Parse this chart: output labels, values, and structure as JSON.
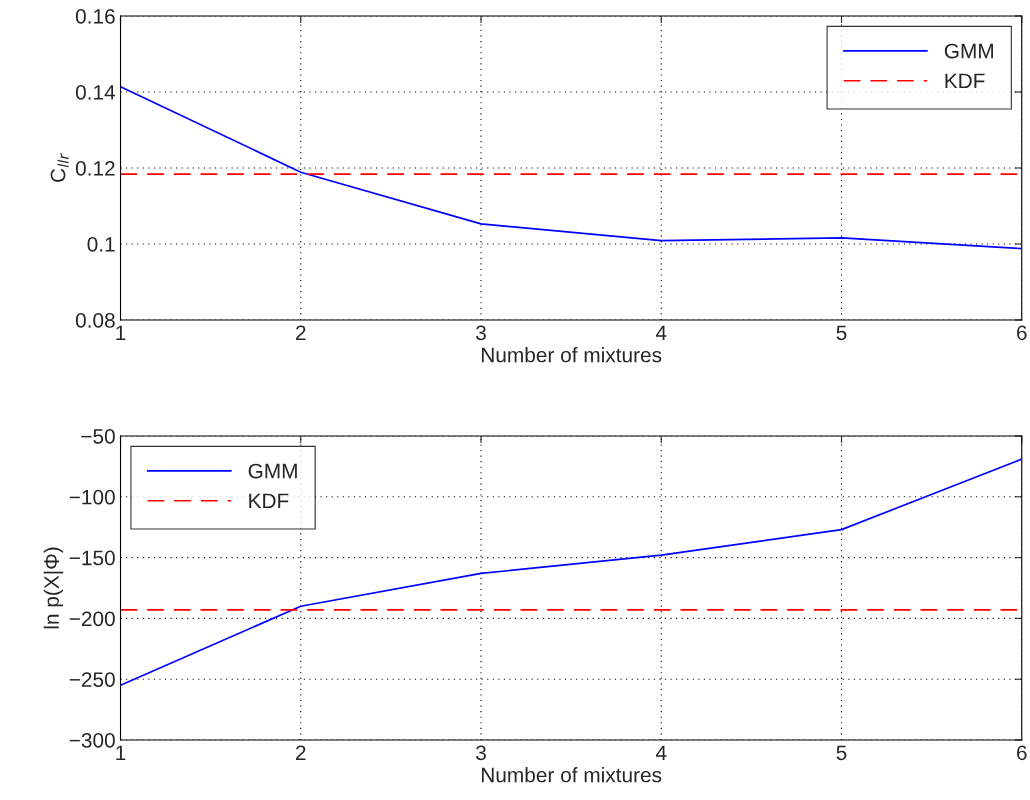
{
  "chart_data": [
    {
      "type": "line",
      "xlabel": "Number of mixtures",
      "ylabel": "C$_{llr}$",
      "x": [
        1,
        2,
        3,
        4,
        5,
        6
      ],
      "xlim": [
        1,
        6
      ],
      "xticks": [
        1,
        2,
        3,
        4,
        5,
        6
      ],
      "ylim": [
        0.08,
        0.16
      ],
      "yticks": [
        0.08,
        0.1,
        0.12,
        0.14,
        0.16
      ],
      "grid": true,
      "legend": "top right",
      "series": [
        {
          "name": "GMM",
          "color": "#0000ff",
          "line_style": "solid",
          "values": [
            0.1414,
            0.1189,
            0.1053,
            0.1009,
            0.1016,
            0.0988
          ]
        },
        {
          "name": "KDF",
          "color": "#ff0000",
          "line_style": "dashed",
          "values": [
            0.1184,
            0.1184,
            0.1184,
            0.1184,
            0.1184,
            0.1184
          ]
        }
      ]
    },
    {
      "type": "line",
      "xlabel": "Number of mixtures",
      "ylabel": "ln p(X|Φ)",
      "x": [
        1,
        2,
        3,
        4,
        5,
        6
      ],
      "xlim": [
        1,
        6
      ],
      "xticks": [
        1,
        2,
        3,
        4,
        5,
        6
      ],
      "ylim": [
        -300,
        -50
      ],
      "yticks": [
        -300,
        -250,
        -200,
        -150,
        -100,
        -50
      ],
      "grid": true,
      "legend": "top left",
      "series": [
        {
          "name": "GMM",
          "color": "#0000ff",
          "line_style": "solid",
          "values": [
            -255,
            -190,
            -163,
            -148,
            -127,
            -69
          ]
        },
        {
          "name": "KDF",
          "color": "#ff0000",
          "line_style": "dashed",
          "values": [
            -193,
            -193,
            -193,
            -193,
            -193,
            -193
          ]
        }
      ]
    }
  ]
}
